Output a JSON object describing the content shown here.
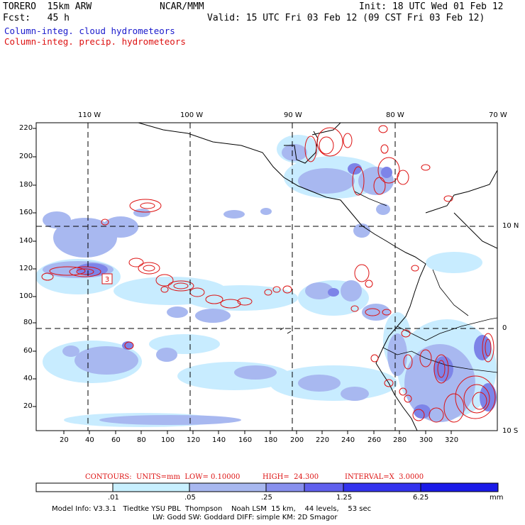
{
  "header": {
    "model": "TORERO  15km ARW",
    "org": "NCAR/MMM",
    "init": "Init: 18 UTC Wed 01 Feb 12",
    "fcst": "Fcst:   45 h",
    "valid": "Valid: 15 UTC Fri 03 Feb 12 (09 CST Fri 03 Feb 12)"
  },
  "legend": {
    "cloud": "Column-integ. cloud hydrometeors",
    "precip": "Column-integ. precip. hydrometeors"
  },
  "axes": {
    "top_lon": [
      "110 W",
      "100 W",
      "90 W",
      "80 W",
      "70 W"
    ],
    "right_lat": [
      "10 N",
      "0",
      "10 S"
    ],
    "y_ticks": [
      "220",
      "200",
      "180",
      "160",
      "140",
      "120",
      "100",
      "80",
      "60",
      "40",
      "20"
    ],
    "x_ticks": [
      "20",
      "40",
      "60",
      "80",
      "100",
      "120",
      "140",
      "160",
      "180",
      "200",
      "220",
      "240",
      "260",
      "280",
      "300",
      "320"
    ]
  },
  "map": {
    "contour_label": "3",
    "colors": {
      "cloud_light": "#c8ecff",
      "cloud_mid": "#a8b8f0",
      "cloud_dark": "#7d84e8",
      "precip": "#dd1111",
      "coast": "#000000"
    }
  },
  "contour_info": {
    "contours": "CONTOURS:  UNITS=mm  LOW= 0.10000",
    "high": "HIGH=  24.300",
    "interval": "INTERVAL=X  3.0000"
  },
  "colorbar": {
    "labels": [
      ".01",
      ".05",
      ".25",
      "1.25",
      "6.25"
    ],
    "unit": "mm",
    "colors": [
      "#ffffff",
      "#c8f0ff",
      "#a8b8f0",
      "#8890ee",
      "#6060ee",
      "#3333ee",
      "#1a1ae8"
    ]
  },
  "model_info": {
    "line1": "Model Info: V3.3.1   Tiedtke YSU PBL  Thompson    Noah LSM  15 km,    44 levels,    53 sec",
    "line2": "LW: Godd SW: Goddard DIFF: simple KM: 2D Smagor"
  }
}
